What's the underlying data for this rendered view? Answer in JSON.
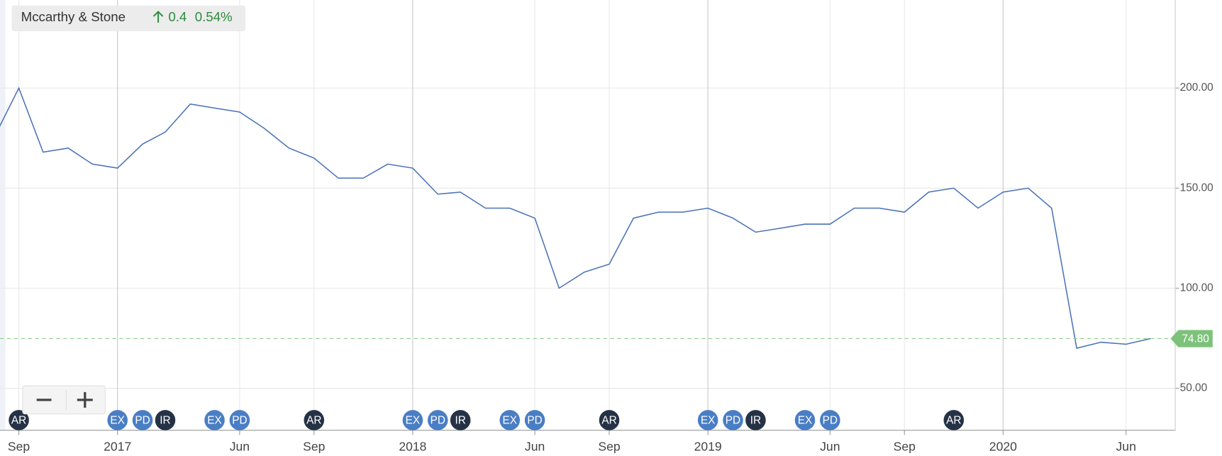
{
  "chart_data": {
    "type": "line",
    "title": "Mccarthy & Stone",
    "change": 0.4,
    "change_pct": {
      "value": 0.54,
      "label": "0.54%"
    },
    "last_value": {
      "value": 74.8,
      "label": "74.80"
    },
    "x": [
      "2016-08",
      "2016-09",
      "2016-10",
      "2016-11",
      "2016-12",
      "2017-01",
      "2017-02",
      "2017-03",
      "2017-04",
      "2017-05",
      "2017-06",
      "2017-07",
      "2017-08",
      "2017-09",
      "2017-10",
      "2017-11",
      "2017-12",
      "2018-01",
      "2018-02",
      "2018-03",
      "2018-04",
      "2018-05",
      "2018-06",
      "2018-07",
      "2018-08",
      "2018-09",
      "2018-10",
      "2018-11",
      "2018-12",
      "2019-01",
      "2019-02",
      "2019-03",
      "2019-04",
      "2019-05",
      "2019-06",
      "2019-07",
      "2019-08",
      "2019-09",
      "2019-10",
      "2019-11",
      "2019-12",
      "2020-01",
      "2020-02",
      "2020-03",
      "2020-04",
      "2020-05",
      "2020-06",
      "2020-07"
    ],
    "series": [
      {
        "name": "Mccarthy & Stone",
        "color": "#4a72b8",
        "values": [
          175,
          200,
          168,
          170,
          162,
          160,
          172,
          178,
          192,
          190,
          188,
          180,
          170,
          165,
          155,
          155,
          162,
          160,
          147,
          148,
          140,
          140,
          135,
          100,
          108,
          112,
          135,
          138,
          138,
          140,
          135,
          128,
          130,
          132,
          132,
          140,
          140,
          138,
          148,
          150,
          140,
          148,
          150,
          140,
          70,
          73,
          72,
          74.8
        ]
      }
    ],
    "xlim": [
      "2016-08",
      "2020-07"
    ],
    "xticks": [
      {
        "value": "2016-09",
        "label": "Sep"
      },
      {
        "value": "2017-01",
        "label": "2017"
      },
      {
        "value": "2017-06",
        "label": "Jun"
      },
      {
        "value": "2017-09",
        "label": "Sep"
      },
      {
        "value": "2018-01",
        "label": "2018"
      },
      {
        "value": "2018-06",
        "label": "Jun"
      },
      {
        "value": "2018-09",
        "label": "Sep"
      },
      {
        "value": "2019-01",
        "label": "2019"
      },
      {
        "value": "2019-06",
        "label": "Jun"
      },
      {
        "value": "2019-09",
        "label": "Sep"
      },
      {
        "value": "2020-01",
        "label": "2020"
      },
      {
        "value": "2020-06",
        "label": "Jun"
      }
    ],
    "ylim": [
      29,
      244
    ],
    "yticks": [
      {
        "value": 50,
        "label": "50.00"
      },
      {
        "value": 100,
        "label": "100.00"
      },
      {
        "value": 150,
        "label": "150.00"
      },
      {
        "value": 200,
        "label": "200.00"
      }
    ],
    "grid": true,
    "events": [
      {
        "label": "AR",
        "x": "2016-09",
        "color": "#253246"
      },
      {
        "label": "EX",
        "x": "2017-01",
        "color": "#4a7ec4"
      },
      {
        "label": "PD",
        "x": "2017-02",
        "color": "#4a7ec4"
      },
      {
        "label": "IR",
        "x": "2017-03",
        "color": "#253246"
      },
      {
        "label": "EX",
        "x": "2017-05",
        "color": "#4a7ec4"
      },
      {
        "label": "PD",
        "x": "2017-06",
        "color": "#4a7ec4"
      },
      {
        "label": "AR",
        "x": "2017-09",
        "color": "#253246"
      },
      {
        "label": "EX",
        "x": "2018-01",
        "color": "#4a7ec4"
      },
      {
        "label": "PD",
        "x": "2018-02",
        "color": "#4a7ec4"
      },
      {
        "label": "IR",
        "x": "2018-03",
        "color": "#253246"
      },
      {
        "label": "EX",
        "x": "2018-05",
        "color": "#4a7ec4"
      },
      {
        "label": "PD",
        "x": "2018-06",
        "color": "#4a7ec4"
      },
      {
        "label": "AR",
        "x": "2018-09",
        "color": "#253246"
      },
      {
        "label": "EX",
        "x": "2019-01",
        "color": "#4a7ec4"
      },
      {
        "label": "PD",
        "x": "2019-02",
        "color": "#4a7ec4"
      },
      {
        "label": "IR",
        "x": "2019-03",
        "color": "#253246"
      },
      {
        "label": "EX",
        "x": "2019-05",
        "color": "#4a7ec4"
      },
      {
        "label": "PD",
        "x": "2019-06",
        "color": "#4a7ec4"
      },
      {
        "label": "AR",
        "x": "2019-11",
        "color": "#253246"
      }
    ]
  }
}
